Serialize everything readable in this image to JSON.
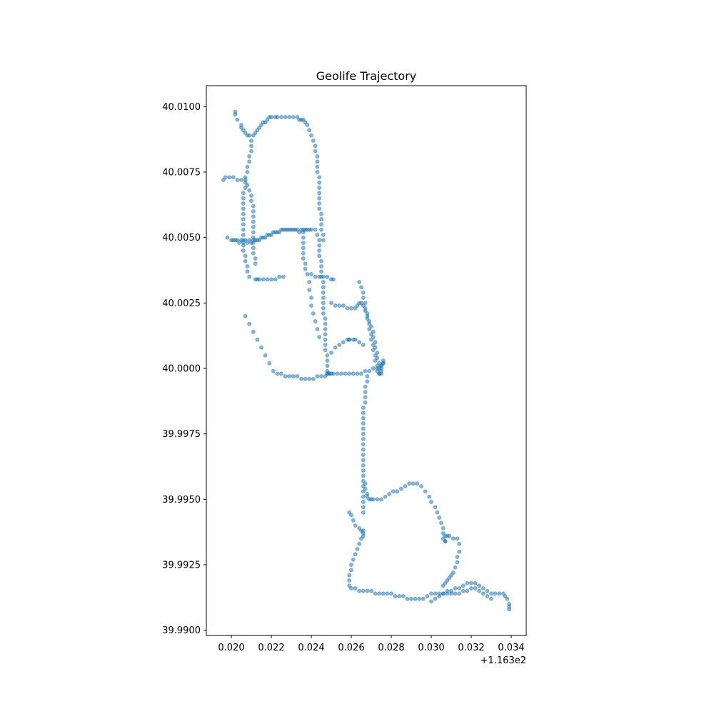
{
  "chart_data": {
    "type": "scatter",
    "title": "Geolife Trajectory",
    "xlabel": "",
    "ylabel": "",
    "xlim": [
      0.01875,
      0.03475
    ],
    "ylim": [
      39.9898,
      40.0108
    ],
    "x_offset_label": "+1.163e2",
    "x_ticks": [
      {
        "value": 0.02,
        "label": "0.020"
      },
      {
        "value": 0.022,
        "label": "0.022"
      },
      {
        "value": 0.024,
        "label": "0.024"
      },
      {
        "value": 0.026,
        "label": "0.026"
      },
      {
        "value": 0.028,
        "label": "0.028"
      },
      {
        "value": 0.03,
        "label": "0.030"
      },
      {
        "value": 0.032,
        "label": "0.032"
      },
      {
        "value": 0.034,
        "label": "0.034"
      }
    ],
    "y_ticks": [
      {
        "value": 39.99,
        "label": "39.9900"
      },
      {
        "value": 39.9925,
        "label": "39.9925"
      },
      {
        "value": 39.995,
        "label": "39.9950"
      },
      {
        "value": 39.9975,
        "label": "39.9975"
      },
      {
        "value": 40.0,
        "label": "40.0000"
      },
      {
        "value": 40.0025,
        "label": "40.0025"
      },
      {
        "value": 40.005,
        "label": "40.0050"
      },
      {
        "value": 40.0075,
        "label": "40.0075"
      },
      {
        "value": 40.01,
        "label": "40.0100"
      }
    ],
    "grid": false,
    "marker_color": "#1f77b4",
    "marker_alpha": 0.55,
    "series": [
      {
        "x": [
          0.0202,
          0.0202,
          0.0203,
          0.0205,
          0.0205,
          0.0206,
          0.0207,
          0.0208,
          0.0209,
          0.0211,
          0.0212,
          0.0213,
          0.0214,
          0.0215,
          0.0216,
          0.0217,
          0.0218,
          0.0219,
          0.022,
          0.0222,
          0.0223,
          0.0225,
          0.0227,
          0.0229,
          0.0231,
          0.0233,
          0.0234,
          0.0235,
          0.0236,
          0.0237,
          0.0238,
          0.0239,
          0.024,
          0.0241,
          0.0242,
          0.0242,
          0.0243,
          0.0243,
          0.0243,
          0.0243,
          0.0244,
          0.0244,
          0.0244,
          0.0244,
          0.0244,
          0.0244,
          0.0244,
          0.0245,
          0.0245,
          0.0245,
          0.0245,
          0.0246,
          0.0246
        ],
        "y": [
          40.0098,
          40.0097,
          40.0095,
          40.0093,
          40.0092,
          40.0091,
          40.009,
          40.0089,
          40.0089,
          40.0089,
          40.009,
          40.0091,
          40.0092,
          40.0093,
          40.0094,
          40.0094,
          40.0095,
          40.0096,
          40.0096,
          40.0096,
          40.0096,
          40.0096,
          40.0096,
          40.0096,
          40.0096,
          40.0096,
          40.0095,
          40.0095,
          40.0095,
          40.0094,
          40.0093,
          40.0091,
          40.0089,
          40.0087,
          40.0085,
          40.0083,
          40.0081,
          40.0079,
          40.0077,
          40.0075,
          40.0073,
          40.0071,
          40.0069,
          40.0067,
          40.0065,
          40.0063,
          40.0061,
          40.0059,
          40.0057,
          40.0055,
          40.0053,
          40.0051,
          40.0049
        ]
      },
      {
        "x": [
          0.021,
          0.021,
          0.021,
          0.0209,
          0.0209,
          0.0208,
          0.0208,
          0.0207,
          0.0207,
          0.0207,
          0.0206,
          0.0206,
          0.0206,
          0.0206,
          0.0206,
          0.0206,
          0.0206,
          0.0206,
          0.0206,
          0.0206,
          0.0206,
          0.0206,
          0.0207,
          0.0207,
          0.0208,
          0.0208,
          0.0209
        ],
        "y": [
          40.0087,
          40.0085,
          40.0083,
          40.0081,
          40.0079,
          40.0077,
          40.0075,
          40.0073,
          40.0071,
          40.0069,
          40.0067,
          40.0065,
          40.0063,
          40.0061,
          40.0059,
          40.0057,
          40.0055,
          40.0053,
          40.0051,
          40.0049,
          40.0047,
          40.0045,
          40.0043,
          40.0041,
          40.0039,
          40.0037,
          40.0035
        ]
      },
      {
        "x": [
          0.0196,
          0.0197,
          0.0199,
          0.0201,
          0.0203,
          0.0205,
          0.0207,
          0.0208,
          0.0209,
          0.021,
          0.021,
          0.0211,
          0.0211,
          0.0211,
          0.0211,
          0.0211,
          0.0211,
          0.0211,
          0.0211,
          0.0211,
          0.0211,
          0.0212,
          0.0212
        ],
        "y": [
          40.0072,
          40.0073,
          40.0073,
          40.0073,
          40.0072,
          40.0072,
          40.0072,
          40.007,
          40.0068,
          40.0066,
          40.0064,
          40.0062,
          40.006,
          40.0058,
          40.0056,
          40.0054,
          40.0052,
          40.005,
          40.0048,
          40.0046,
          40.0044,
          40.0042,
          40.004
        ]
      },
      {
        "x": [
          0.0198,
          0.02,
          0.0202,
          0.0204,
          0.0206,
          0.0208,
          0.021,
          0.0212,
          0.0214,
          0.0216,
          0.0218,
          0.022,
          0.0222,
          0.0224,
          0.0226,
          0.0228,
          0.023,
          0.0232,
          0.0234,
          0.0236,
          0.0238,
          0.024,
          0.0242,
          0.0243,
          0.0244,
          0.0244,
          0.0244,
          0.0244,
          0.0245,
          0.0245,
          0.0245,
          0.0245,
          0.0246,
          0.0246,
          0.0246,
          0.0246,
          0.0246,
          0.0246,
          0.0246,
          0.0247,
          0.0247,
          0.0247,
          0.0247,
          0.0247,
          0.0247,
          0.0247,
          0.0248,
          0.0248,
          0.0248,
          0.0248,
          0.0248,
          0.0248,
          0.0249,
          0.025
        ],
        "y": [
          40.005,
          40.0049,
          40.0049,
          40.0048,
          40.0048,
          40.0048,
          40.0048,
          40.0049,
          40.0049,
          40.005,
          40.0051,
          40.0051,
          40.0052,
          40.0052,
          40.0053,
          40.0053,
          40.0053,
          40.0053,
          40.0052,
          40.0053,
          40.0053,
          40.0053,
          40.0053,
          40.0051,
          40.0049,
          40.0047,
          40.0045,
          40.0043,
          40.0041,
          40.0039,
          40.0037,
          40.0035,
          40.0033,
          40.0031,
          40.0029,
          40.0027,
          40.0025,
          40.0023,
          40.0021,
          40.0019,
          40.0017,
          40.0015,
          40.0013,
          40.0011,
          40.0009,
          40.0007,
          40.0005,
          40.0003,
          40.0001,
          39.9999,
          39.9998,
          39.9998,
          39.9998,
          39.9998
        ]
      },
      {
        "x": [
          0.0236,
          0.0236,
          0.0236,
          0.0236,
          0.0236,
          0.0236,
          0.0237,
          0.0237,
          0.0238,
          0.024,
          0.0242,
          0.0244,
          0.0246,
          0.0248,
          0.025,
          0.0251
        ],
        "y": [
          40.0052,
          40.005,
          40.0048,
          40.0046,
          40.0044,
          40.0042,
          40.004,
          40.0038,
          40.0036,
          40.0036,
          40.0035,
          40.0035,
          40.0035,
          40.0035,
          40.0034,
          40.0034
        ]
      },
      {
        "x": [
          0.0207,
          0.0209,
          0.0211,
          0.0213,
          0.0215,
          0.0217,
          0.0219,
          0.0221,
          0.0223,
          0.0225,
          0.0227,
          0.0229,
          0.0231,
          0.0233,
          0.0235,
          0.0237,
          0.0239,
          0.0241,
          0.0243,
          0.0245,
          0.0247,
          0.0249,
          0.0251,
          0.0253,
          0.0255,
          0.0257,
          0.0259,
          0.0261,
          0.0263,
          0.0265,
          0.0267,
          0.0269,
          0.0271,
          0.0273,
          0.0275
        ],
        "y": [
          40.002,
          40.0017,
          40.0014,
          40.0011,
          40.0008,
          40.0005,
          40.0002,
          39.9999,
          39.9998,
          39.9998,
          39.9997,
          39.9997,
          39.9997,
          39.9997,
          39.9996,
          39.9996,
          39.9996,
          39.9996,
          39.9997,
          39.9997,
          39.9997,
          39.9998,
          39.9998,
          39.9998,
          39.9998,
          39.9998,
          39.9998,
          39.9998,
          39.9998,
          39.9998,
          39.9999,
          39.9999,
          40.0,
          40.0,
          40.0001
        ]
      },
      {
        "x": [
          0.0212,
          0.0213,
          0.0214,
          0.0216,
          0.0218,
          0.022,
          0.0222,
          0.0224,
          0.0226
        ],
        "y": [
          40.0034,
          40.0034,
          40.0034,
          40.0034,
          40.0034,
          40.0034,
          40.0034,
          40.0035,
          40.0035
        ]
      },
      {
        "x": [
          0.0239,
          0.0239,
          0.024,
          0.024,
          0.0241,
          0.0242,
          0.0243,
          0.0244
        ],
        "y": [
          40.0033,
          40.003,
          40.0027,
          40.0024,
          40.0021,
          40.0018,
          40.0015,
          40.0012
        ]
      },
      {
        "x": [
          0.025,
          0.0252,
          0.0254,
          0.0256,
          0.0258,
          0.026,
          0.0262,
          0.0263,
          0.0264,
          0.0265,
          0.0266,
          0.0267,
          0.0268,
          0.0269,
          0.027,
          0.0271,
          0.0271,
          0.0272,
          0.0272,
          0.0273,
          0.0273,
          0.0274,
          0.0274,
          0.0275,
          0.0275
        ],
        "y": [
          40.0025,
          40.0024,
          40.0024,
          40.0024,
          40.0023,
          40.0023,
          40.0023,
          40.0024,
          40.0025,
          40.0025,
          40.0024,
          40.0022,
          40.002,
          40.0018,
          40.0016,
          40.0014,
          40.0012,
          40.001,
          40.0008,
          40.0006,
          40.0004,
          40.0002,
          40.0,
          39.9999,
          39.9998
        ]
      },
      {
        "x": [
          0.0264,
          0.0265,
          0.0266,
          0.0266,
          0.0267,
          0.0267,
          0.0268,
          0.0268,
          0.0269,
          0.0269,
          0.027,
          0.027,
          0.0271,
          0.0271,
          0.0272,
          0.0272,
          0.0273,
          0.0273,
          0.0274,
          0.0274,
          0.0275,
          0.0275,
          0.0276,
          0.0276,
          0.0276
        ],
        "y": [
          40.0033,
          40.0031,
          40.0029,
          40.0027,
          40.0025,
          40.0023,
          40.0021,
          40.0019,
          40.0017,
          40.0015,
          40.0013,
          40.0011,
          40.0009,
          40.0007,
          40.0005,
          40.0003,
          40.0001,
          39.9999,
          39.9998,
          39.9998,
          40.0,
          40.0001,
          40.0002,
          40.0002,
          40.0003
        ]
      },
      {
        "x": [
          0.025,
          0.0252,
          0.0254,
          0.0256,
          0.0258,
          0.0259
        ],
        "y": [
          40.0006,
          40.0008,
          40.0009,
          40.001,
          40.0011,
          40.0011
        ]
      },
      {
        "x": [
          0.0259,
          0.0261,
          0.0262,
          0.0264,
          0.0266
        ],
        "y": [
          40.0011,
          40.0011,
          40.0011,
          40.001,
          40.0009
        ]
      },
      {
        "x": [
          0.0268,
          0.0268,
          0.0267,
          0.0267,
          0.0267,
          0.0267,
          0.0266,
          0.0266,
          0.0266,
          0.0266,
          0.0266,
          0.0266,
          0.0266,
          0.0266,
          0.0266,
          0.0266,
          0.0266,
          0.0266,
          0.0266,
          0.0266,
          0.0266,
          0.0266,
          0.0266,
          0.0266,
          0.0266,
          0.0266,
          0.0266,
          0.0267,
          0.0267,
          0.0268,
          0.0268,
          0.0269,
          0.027,
          0.0271,
          0.0273,
          0.0275,
          0.0277,
          0.0279,
          0.0281,
          0.0283,
          0.0285,
          0.0287,
          0.0289,
          0.0291,
          0.0293,
          0.0295,
          0.0297,
          0.0299,
          0.03,
          0.0302,
          0.0303,
          0.0304,
          0.0305,
          0.0306,
          0.0306,
          0.0306,
          0.0307,
          0.0307,
          0.0307,
          0.0308,
          0.0309,
          0.0311,
          0.0313,
          0.0314,
          0.0314,
          0.0313,
          0.0313,
          0.0312,
          0.0311,
          0.031,
          0.0309,
          0.0308,
          0.0307,
          0.0306
        ],
        "y": [
          39.9997,
          39.9995,
          39.9993,
          39.9991,
          39.9989,
          39.9987,
          39.9985,
          39.9983,
          39.9981,
          39.9979,
          39.9977,
          39.9975,
          39.9973,
          39.9971,
          39.9969,
          39.9967,
          39.9965,
          39.9963,
          39.9961,
          39.9959,
          39.9957,
          39.9955,
          39.9953,
          39.9951,
          39.9949,
          39.9947,
          39.9945,
          39.9956,
          39.9954,
          39.9952,
          39.9951,
          39.995,
          39.995,
          39.995,
          39.995,
          39.995,
          39.9951,
          39.9952,
          39.9953,
          39.9953,
          39.9954,
          39.9955,
          39.9956,
          39.9956,
          39.9956,
          39.9955,
          39.9953,
          39.9951,
          39.9949,
          39.9947,
          39.9945,
          39.9943,
          39.9941,
          39.9939,
          39.9937,
          39.9935,
          39.9934,
          39.9934,
          39.9936,
          39.9936,
          39.9936,
          39.9935,
          39.9935,
          39.9933,
          39.993,
          39.9928,
          39.9926,
          39.9924,
          39.9922,
          39.9921,
          39.992,
          39.9919,
          39.9918,
          39.9917
        ]
      },
      {
        "x": [
          0.0259,
          0.026,
          0.0261,
          0.0262,
          0.0264,
          0.0265,
          0.0266,
          0.0266,
          0.0266,
          0.0265,
          0.0264,
          0.0263,
          0.0262,
          0.0261,
          0.026,
          0.026,
          0.0259,
          0.0259,
          0.0259,
          0.026,
          0.0262,
          0.0264,
          0.0266,
          0.0268,
          0.027,
          0.0272,
          0.0274,
          0.0276,
          0.0278,
          0.028,
          0.0282,
          0.0284,
          0.0286,
          0.0288,
          0.029,
          0.0292,
          0.0294,
          0.0296,
          0.0298,
          0.03,
          0.0302,
          0.0304,
          0.0306,
          0.0308,
          0.031,
          0.0312,
          0.0314,
          0.0316,
          0.0318,
          0.032,
          0.0322,
          0.0324,
          0.0326,
          0.0328,
          0.033,
          0.0332,
          0.0334,
          0.0336,
          0.0337,
          0.0338,
          0.0339,
          0.0339,
          0.0339
        ],
        "y": [
          39.9945,
          39.9944,
          39.9942,
          39.994,
          39.9939,
          39.9938,
          39.9938,
          39.9937,
          39.9936,
          39.9935,
          39.9933,
          39.9931,
          39.9929,
          39.9927,
          39.9925,
          39.9923,
          39.9921,
          39.9919,
          39.9917,
          39.9916,
          39.9916,
          39.9915,
          39.9915,
          39.9915,
          39.9915,
          39.9914,
          39.9914,
          39.9914,
          39.9914,
          39.9914,
          39.9913,
          39.9913,
          39.9913,
          39.9912,
          39.9912,
          39.9912,
          39.9912,
          39.9912,
          39.9913,
          39.9914,
          39.9914,
          39.9914,
          39.9914,
          39.9915,
          39.9915,
          39.9916,
          39.9916,
          39.9917,
          39.9918,
          39.9918,
          39.9918,
          39.9917,
          39.9916,
          39.9915,
          39.9914,
          39.9914,
          39.9914,
          39.9914,
          39.9913,
          39.9912,
          39.991,
          39.9908,
          39.9909
        ]
      },
      {
        "x": [
          0.03,
          0.0302,
          0.0304,
          0.0306,
          0.0308,
          0.031,
          0.0312,
          0.0314,
          0.0316,
          0.0318,
          0.032,
          0.0322,
          0.0324,
          0.0326,
          0.0328,
          0.033
        ],
        "y": [
          39.9911,
          39.9912,
          39.9913,
          39.9914,
          39.9914,
          39.9914,
          39.9914,
          39.9914,
          39.9915,
          39.9915,
          39.9916,
          39.9916,
          39.9915,
          39.9914,
          39.9913,
          39.9912
        ]
      },
      {
        "x": [
          0.0201,
          0.0203,
          0.0205,
          0.0207,
          0.0209,
          0.0211,
          0.0213,
          0.0215,
          0.0217,
          0.0219,
          0.0221,
          0.0223,
          0.0225,
          0.0227,
          0.0229,
          0.0231,
          0.0233,
          0.0235,
          0.0237,
          0.0239
        ],
        "y": [
          40.0049,
          40.0049,
          40.0049,
          40.0049,
          40.0049,
          40.0049,
          40.0049,
          40.005,
          40.005,
          40.0051,
          40.0052,
          40.0052,
          40.0053,
          40.0053,
          40.0053,
          40.0053,
          40.0053,
          40.0053,
          40.0053,
          40.0053
        ]
      }
    ]
  }
}
